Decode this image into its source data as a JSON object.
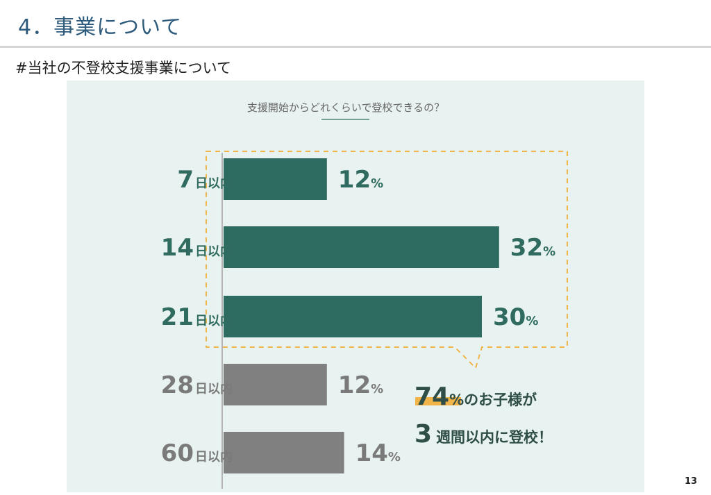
{
  "slide": {
    "title": "4．事業について",
    "subtitle": "#当社の不登校支援事業について",
    "page_number": "13"
  },
  "colors": {
    "accent_bar": "#2e6b60",
    "muted_bar": "#808080",
    "highlight_box": "#f0b448",
    "panel_bg": "#e8f2f0",
    "title": "#2e5b7c"
  },
  "chart_data": {
    "type": "bar",
    "orientation": "horizontal",
    "title": "支援開始からどれくらいで登校できるの？",
    "categories": [
      {
        "num": "7",
        "suffix": "日以内"
      },
      {
        "num": "14",
        "suffix": "日以内"
      },
      {
        "num": "21",
        "suffix": "日以内"
      },
      {
        "num": "28",
        "suffix": "日以内"
      },
      {
        "num": "60",
        "suffix": "日以内"
      }
    ],
    "values": [
      12,
      32,
      30,
      12,
      14
    ],
    "value_unit": "%",
    "highlighted_categories": [
      "7",
      "14",
      "21"
    ],
    "grid": false,
    "xlabel": "",
    "ylabel": "",
    "callout": {
      "line1_number": "74",
      "line1_unit": "%",
      "line1_text": "のお子様が",
      "line2_number": "3",
      "line2_text": "週間以内に登校！"
    }
  }
}
